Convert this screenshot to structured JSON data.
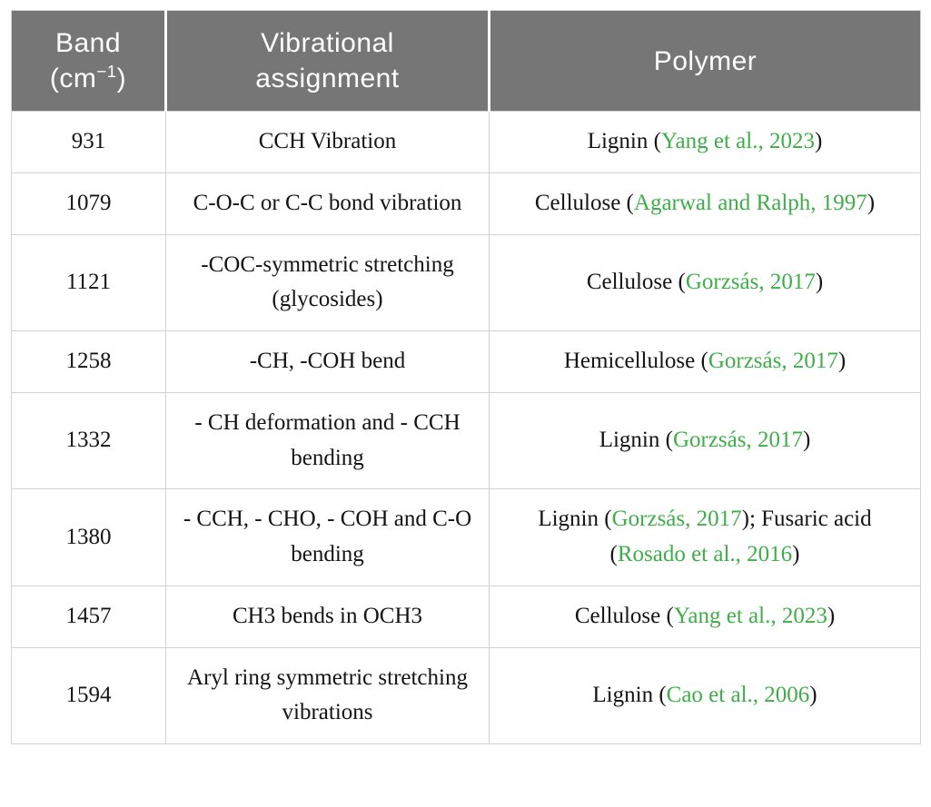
{
  "table": {
    "headers": {
      "band": {
        "line1": "Band",
        "line2_pre": "(cm",
        "line2_sup": "−1",
        "line2_post": ")"
      },
      "assignment": {
        "line1": "Vibrational",
        "line2": "assignment"
      },
      "polymer": "Polymer"
    },
    "rows": [
      {
        "band": "931",
        "assignment": "CCH Vibration",
        "polymer": [
          {
            "text": "Lignin (",
            "link": false
          },
          {
            "text": "Yang et al., 2023",
            "link": true
          },
          {
            "text": ")",
            "link": false
          }
        ]
      },
      {
        "band": "1079",
        "assignment": "C-O-C or C-C bond vibration",
        "polymer": [
          {
            "text": "Cellulose (",
            "link": false
          },
          {
            "text": "Agarwal and Ralph, 1997",
            "link": true
          },
          {
            "text": ")",
            "link": false
          }
        ]
      },
      {
        "band": "1121",
        "assignment": "-COC-symmetric stretching (glycosides)",
        "polymer": [
          {
            "text": "Cellulose (",
            "link": false
          },
          {
            "text": "Gorzsás, 2017",
            "link": true
          },
          {
            "text": ")",
            "link": false
          }
        ]
      },
      {
        "band": "1258",
        "assignment": "-CH, -COH bend",
        "polymer": [
          {
            "text": "Hemicellulose (",
            "link": false
          },
          {
            "text": "Gorzsás, 2017",
            "link": true
          },
          {
            "text": ")",
            "link": false
          }
        ]
      },
      {
        "band": "1332",
        "assignment": "- CH deformation and - CCH bending",
        "polymer": [
          {
            "text": "Lignin (",
            "link": false
          },
          {
            "text": "Gorzsás, 2017",
            "link": true
          },
          {
            "text": ")",
            "link": false
          }
        ]
      },
      {
        "band": "1380",
        "assignment": "- CCH, - CHO, - COH and C-O bending",
        "polymer": [
          {
            "text": "Lignin (",
            "link": false
          },
          {
            "text": "Gorzsás, 2017",
            "link": true
          },
          {
            "text": "); Fusaric acid (",
            "link": false
          },
          {
            "text": "Rosado et al., 2016",
            "link": true
          },
          {
            "text": ")",
            "link": false
          }
        ]
      },
      {
        "band": "1457",
        "assignment": "CH3 bends in OCH3",
        "polymer": [
          {
            "text": "Cellulose (",
            "link": false
          },
          {
            "text": "Yang et al., 2023",
            "link": true
          },
          {
            "text": ")",
            "link": false
          }
        ]
      },
      {
        "band": "1594",
        "assignment": "Aryl ring symmetric stretching vibrations",
        "polymer": [
          {
            "text": "Lignin (",
            "link": false
          },
          {
            "text": "Cao et al., 2006",
            "link": true
          },
          {
            "text": ")",
            "link": false
          }
        ]
      }
    ]
  },
  "colors": {
    "header_bg": "#767676",
    "header_text": "#ffffff",
    "body_text": "#141414",
    "citation_green": "#3eae49",
    "border": "#d2d2d2"
  }
}
